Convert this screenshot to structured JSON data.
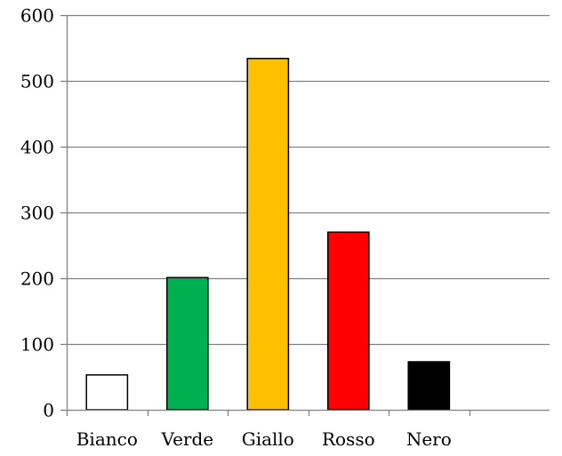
{
  "chart_data": {
    "type": "bar",
    "title": "",
    "xlabel": "",
    "ylabel": "",
    "categories": [
      "Bianco",
      "Verde",
      "Giallo",
      "Rosso",
      "Nero"
    ],
    "values": [
      53,
      201,
      534,
      270,
      73
    ],
    "colors": [
      "#ffffff",
      "#00b050",
      "#ffc000",
      "#ff0000",
      "#000000"
    ],
    "bar_outline_color": "#000000",
    "ylim": [
      0,
      600
    ],
    "yticks": [
      0,
      100,
      200,
      300,
      400,
      500,
      600
    ],
    "ytick_labels": [
      "0",
      "100",
      "200",
      "300",
      "400",
      "500",
      "600"
    ],
    "grid": true,
    "gridline_color": "#808080",
    "legend": "none",
    "category_slots": 6
  }
}
